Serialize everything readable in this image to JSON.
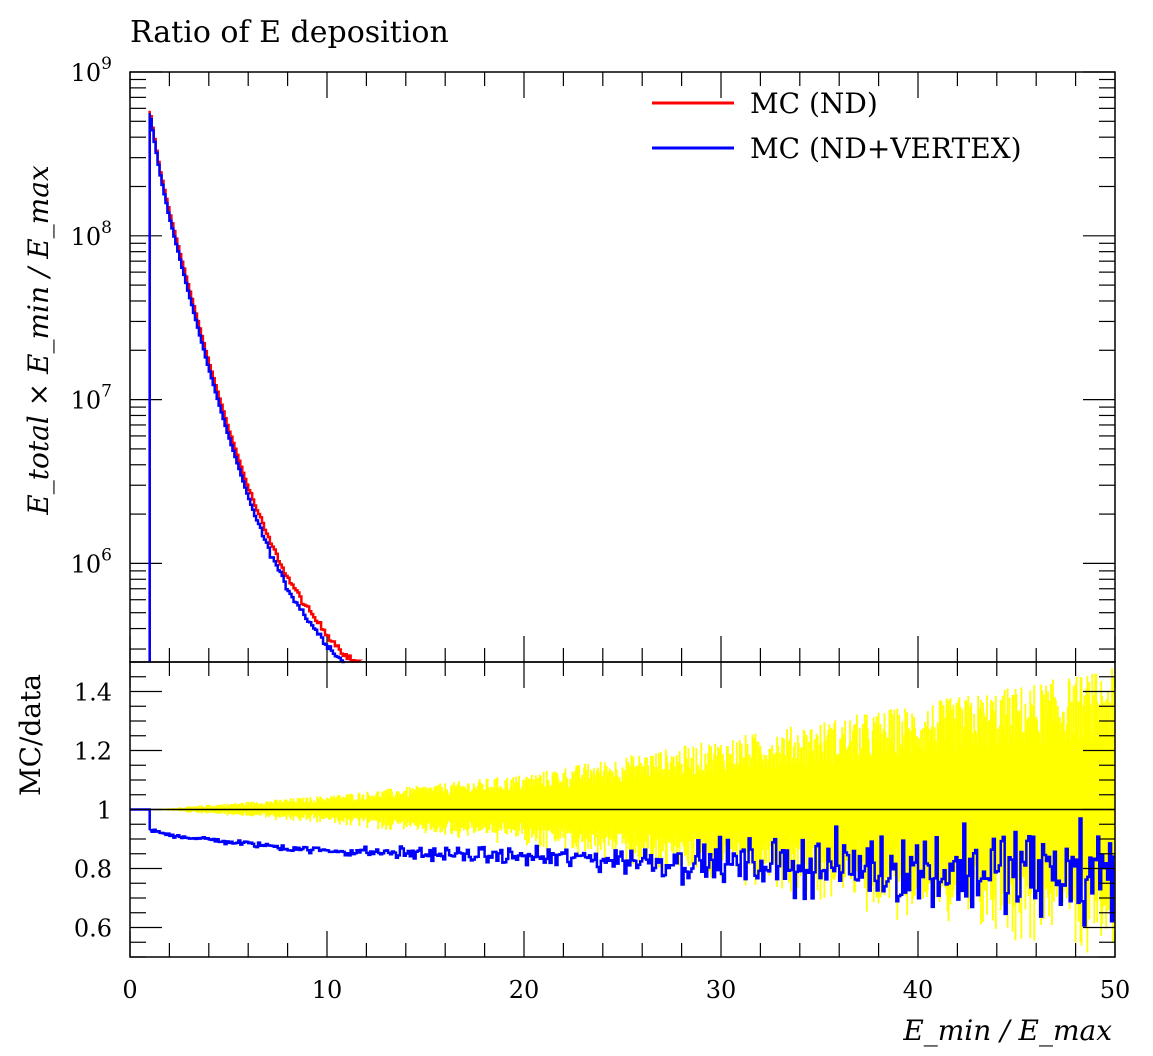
{
  "chart_data": {
    "type": "line",
    "title": "Ratio of E deposition",
    "xlabel": "E_min / E_max",
    "xlim": [
      0,
      50
    ],
    "x_ticks": [
      "0",
      "10",
      "20",
      "30",
      "40",
      "50"
    ],
    "colors": {
      "nd": "#ff0000",
      "nd_vertex": "#0000ff",
      "band": "#ffff00"
    },
    "top_panel": {
      "ylabel": "E_total × E_min / E_max",
      "yscale": "log",
      "ylim": [
        250000,
        1000000000
      ],
      "y_ticks": [
        {
          "value": 1000000,
          "mantissa": "10",
          "exponent": "6"
        },
        {
          "value": 10000000,
          "mantissa": "10",
          "exponent": "7"
        },
        {
          "value": 100000000,
          "mantissa": "10",
          "exponent": "8"
        },
        {
          "value": 1000000000,
          "mantissa": "10",
          "exponent": "9"
        }
      ],
      "legend_position": "top-right",
      "series": [
        {
          "name": "MC (ND)",
          "color": "#ff0000",
          "x": [
            1,
            1.5,
            2,
            3,
            4,
            5,
            6,
            7,
            8,
            9,
            10,
            11,
            11.5
          ],
          "y": [
            580000000,
            260000000,
            140000000,
            48000000,
            17000000,
            6700000,
            2900000,
            1450000,
            820000,
            530000,
            370000,
            270000,
            250000
          ]
        },
        {
          "name": "MC (ND+VERTEX)",
          "color": "#0000ff",
          "x": [
            1,
            1.5,
            2,
            3,
            4,
            5,
            6,
            7,
            8,
            9,
            10,
            10.8
          ],
          "y": [
            560000000,
            250000000,
            130000000,
            44000000,
            15500000,
            6000000,
            2550000,
            1250000,
            700000,
            460000,
            320000,
            250000
          ]
        }
      ]
    },
    "bottom_panel": {
      "ylabel": "MC/data",
      "ylim": [
        0.5,
        1.5
      ],
      "y_ticks": [
        "0.6",
        "0.8",
        "1",
        "1.2",
        "1.4"
      ],
      "reference_line": 1,
      "ratio_trend": {
        "x": [
          1,
          1.5,
          3,
          5,
          8,
          10,
          15,
          20,
          25,
          30,
          35,
          40,
          45,
          50
        ],
        "y": [
          0.93,
          0.92,
          0.905,
          0.89,
          0.87,
          0.86,
          0.85,
          0.84,
          0.83,
          0.82,
          0.81,
          0.8,
          0.79,
          0.78
        ]
      },
      "ratio_scatter_width": {
        "x": [
          1,
          10,
          20,
          30,
          40,
          50
        ],
        "y": [
          0.005,
          0.01,
          0.02,
          0.05,
          0.09,
          0.13
        ]
      },
      "uncertainty_band_halfwidth": {
        "x": [
          1,
          10,
          20,
          30,
          40,
          50
        ],
        "y": [
          0.0,
          0.04,
          0.1,
          0.2,
          0.3,
          0.4
        ]
      }
    }
  }
}
